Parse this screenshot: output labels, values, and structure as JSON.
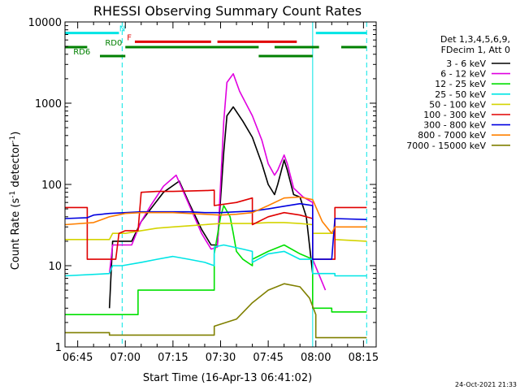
{
  "chart_data": {
    "type": "line",
    "title": "RHESSI Observing Summary Count Rates",
    "xlabel": "Start Time (16-Apr-13 06:41:02)",
    "ylabel_main": "Count Rate (s",
    "ylabel_sup1": "-1",
    "ylabel_mid": " detector",
    "ylabel_sup2": "-1",
    "ylabel_end": ")",
    "xscale": "time",
    "yscale": "log",
    "xlim": [
      "06:41",
      "08:19"
    ],
    "ylim": [
      1,
      10000
    ],
    "x_ticks": [
      "06:45",
      "07:00",
      "07:15",
      "07:30",
      "07:45",
      "08:00",
      "08:15"
    ],
    "y_ticks": [
      {
        "value": 1,
        "label": "1"
      },
      {
        "value": 10,
        "label": "10"
      },
      {
        "value": 100,
        "label": "100"
      },
      {
        "value": 1000,
        "label": "1000"
      },
      {
        "value": 10000,
        "label": "10000"
      }
    ],
    "timestamp": "24-Oct-2021 21:33",
    "legend": {
      "placement": "right",
      "header": [
        "Det 1,3,4,5,6,9,",
        "FDecim 1, Att 0"
      ]
    },
    "flags": [
      {
        "name": "N",
        "color": "#00e5e5",
        "label_time": "07:00",
        "label_value": 7300,
        "segments": [
          [
            "06:41",
            "06:58"
          ],
          [
            "08:00",
            "08:16"
          ]
        ]
      },
      {
        "name": "F",
        "color": "#e00000",
        "label_time": "07:02",
        "label_value": 5700,
        "segments": [
          [
            "07:03",
            "07:27"
          ],
          [
            "07:29",
            "07:54"
          ]
        ]
      },
      {
        "name": "RD0",
        "color": "#008000",
        "label_time": "06:59",
        "label_value": 4900,
        "segments": [
          [
            "06:41",
            "06:48"
          ],
          [
            "07:00",
            "07:42"
          ],
          [
            "07:47",
            "08:01"
          ],
          [
            "08:08",
            "08:16"
          ]
        ]
      },
      {
        "name": "RD6",
        "color": "#008000",
        "label_time": "06:49",
        "label_value": 3800,
        "segments": [
          [
            "06:52",
            "07:00"
          ],
          [
            "07:42",
            "07:59"
          ]
        ]
      }
    ],
    "vlines": [
      {
        "time": "06:41",
        "color": "#00e5e5",
        "style": "solid"
      },
      {
        "time": "06:59",
        "color": "#00e5e5",
        "style": "dashed"
      },
      {
        "time": "07:59",
        "color": "#00e5e5",
        "style": "solid"
      },
      {
        "time": "08:16",
        "color": "#00e5e5",
        "style": "dashed"
      }
    ],
    "series": [
      {
        "name": "3 - 6 keV",
        "color": "#000000",
        "x": [
          "06:41",
          "06:55",
          "06:56",
          "07:02",
          "07:05",
          "07:08",
          "07:12",
          "07:17",
          "07:20",
          "07:24",
          "07:27",
          "07:29",
          "07:31",
          "07:32",
          "07:34",
          "07:37",
          "07:40",
          "07:43",
          "07:45",
          "07:47",
          "07:48",
          "07:50",
          "07:51",
          "07:53",
          "07:55",
          "07:57",
          "07:59",
          "07:59",
          "08:02",
          "08:03"
        ],
        "y": [
          null,
          3,
          20,
          20,
          35,
          50,
          80,
          110,
          60,
          28,
          18,
          18,
          250,
          700,
          900,
          600,
          380,
          180,
          100,
          75,
          100,
          200,
          150,
          75,
          70,
          40,
          8,
          null,
          5,
          null
        ]
      },
      {
        "name": "6 - 12 keV",
        "color": "#e000e0",
        "x": [
          "06:41",
          "06:55",
          "06:56",
          "07:02",
          "07:05",
          "07:08",
          "07:12",
          "07:16",
          "07:19",
          "07:24",
          "07:27",
          "07:29",
          "07:31",
          "07:32",
          "07:34",
          "07:36",
          "07:40",
          "07:43",
          "07:45",
          "07:47",
          "07:48",
          "07:50",
          "07:51",
          "07:53",
          "07:56",
          "07:59",
          "07:59",
          "08:03",
          "08:04"
        ],
        "y": [
          null,
          8,
          18,
          18,
          35,
          55,
          95,
          130,
          70,
          25,
          16,
          17,
          600,
          1800,
          2300,
          1400,
          700,
          350,
          180,
          130,
          150,
          230,
          180,
          90,
          70,
          60,
          12,
          5,
          null
        ]
      },
      {
        "name": "12 - 25 keV",
        "color": "#00e000",
        "x": [
          "06:41",
          "07:04",
          "07:04",
          "07:28",
          "07:28",
          "07:30",
          "07:31",
          "07:33",
          "07:34",
          "07:35",
          "07:37",
          "07:40",
          "07:40",
          "07:45",
          "07:50",
          "07:55",
          "07:59",
          "07:59",
          "08:05",
          "08:05",
          "08:16"
        ],
        "y": [
          2.5,
          2.5,
          5,
          5,
          14,
          40,
          55,
          40,
          25,
          15,
          12,
          10,
          12,
          15,
          18,
          14,
          12,
          3,
          3,
          2.7,
          2.7
        ]
      },
      {
        "name": "25 - 50 keV",
        "color": "#00e5e5",
        "x": [
          "06:41",
          "06:55",
          "06:56",
          "06:59",
          "07:05",
          "07:10",
          "07:15",
          "07:20",
          "07:25",
          "07:28",
          "07:28",
          "07:31",
          "07:34",
          "07:37",
          "07:40",
          "07:40",
          "07:45",
          "07:50",
          "07:55",
          "07:59",
          "07:59",
          "08:06",
          "08:06",
          "08:16"
        ],
        "y": [
          7.5,
          8,
          10,
          10,
          11,
          12,
          13,
          12,
          11,
          10,
          17,
          18,
          17,
          16,
          15,
          11,
          14,
          15,
          12,
          12,
          8,
          8,
          7.5,
          7.5
        ]
      },
      {
        "name": "50 - 100 keV",
        "color": "#d4d400",
        "x": [
          "06:41",
          "06:55",
          "06:56",
          "07:00",
          "07:05",
          "07:10",
          "07:15",
          "07:20",
          "07:25",
          "07:30",
          "07:35",
          "07:40",
          "07:45",
          "07:50",
          "07:55",
          "07:59",
          "07:59",
          "08:06",
          "08:06",
          "08:16"
        ],
        "y": [
          21,
          21,
          25,
          25,
          27,
          29,
          30,
          31,
          32,
          33,
          33,
          33,
          34,
          34,
          33,
          32,
          25,
          25,
          21,
          20
        ]
      },
      {
        "name": "100 - 300 keV",
        "color": "#e00000",
        "x": [
          "06:41",
          "06:48",
          "06:48",
          "06:57",
          "06:58",
          "07:00",
          "07:04",
          "07:05",
          "07:10",
          "07:15",
          "07:20",
          "07:25",
          "07:28",
          "07:28",
          "07:35",
          "07:40",
          "07:40",
          "07:45",
          "07:50",
          "07:55",
          "07:59",
          "07:59",
          "08:06",
          "08:06",
          "08:16"
        ],
        "y": [
          52,
          52,
          12,
          12,
          25,
          27,
          27,
          80,
          82,
          82,
          83,
          84,
          85,
          55,
          60,
          68,
          32,
          40,
          45,
          42,
          38,
          12,
          12,
          52,
          52
        ]
      },
      {
        "name": "300 - 800 keV",
        "color": "#0000e0",
        "x": [
          "06:41",
          "06:48",
          "06:50",
          "06:55",
          "07:00",
          "07:05",
          "07:10",
          "07:15",
          "07:20",
          "07:25",
          "07:30",
          "07:35",
          "07:40",
          "07:45",
          "07:50",
          "07:55",
          "07:59",
          "07:59",
          "08:05",
          "08:06",
          "08:16"
        ],
        "y": [
          38,
          39,
          42,
          44,
          45,
          46,
          46,
          46,
          46,
          45,
          45,
          46,
          47,
          50,
          54,
          58,
          55,
          12,
          12,
          38,
          37
        ]
      },
      {
        "name": "800 - 7000 keV",
        "color": "#ff8000",
        "x": [
          "06:41",
          "06:50",
          "06:55",
          "07:00",
          "07:05",
          "07:10",
          "07:15",
          "07:20",
          "07:25",
          "07:30",
          "07:35",
          "07:40",
          "07:45",
          "07:50",
          "07:55",
          "07:59",
          "08:02",
          "08:05",
          "08:06",
          "08:16"
        ],
        "y": [
          32,
          34,
          40,
          44,
          45,
          45,
          45,
          44,
          43,
          42,
          43,
          45,
          55,
          68,
          70,
          65,
          35,
          25,
          30,
          30
        ]
      },
      {
        "name": "7000 - 15000 keV",
        "color": "#808000",
        "x": [
          "06:41",
          "06:55",
          "06:55",
          "07:28",
          "07:28",
          "07:35",
          "07:40",
          "07:45",
          "07:50",
          "07:55",
          "07:58",
          "08:00",
          "08:00",
          "08:16"
        ],
        "y": [
          1.5,
          1.5,
          1.4,
          1.4,
          1.8,
          2.2,
          3.5,
          5,
          6,
          5.5,
          4,
          2.5,
          1.3,
          1.3
        ]
      }
    ]
  }
}
